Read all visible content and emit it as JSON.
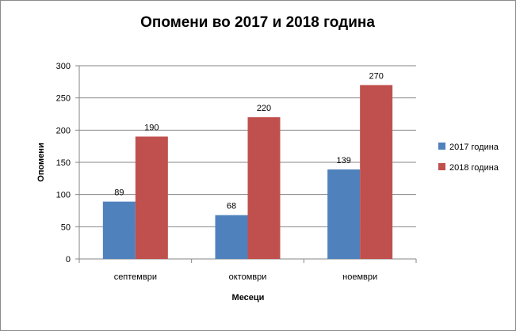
{
  "chart_data": {
    "type": "bar",
    "title": "Опомени во 2017 и 2018 година",
    "xlabel": "Месеци",
    "ylabel": "Опомени",
    "categories": [
      "септември",
      "октомври",
      "ноември"
    ],
    "series": [
      {
        "name": "2017 година",
        "values": [
          89,
          68,
          139
        ],
        "color": "#4f81bd"
      },
      {
        "name": "2018 година",
        "values": [
          190,
          220,
          270
        ],
        "color": "#c0504d"
      }
    ],
    "ylim": [
      0,
      300
    ],
    "yticks": [
      0,
      50,
      100,
      150,
      200,
      250,
      300
    ],
    "grid": true,
    "legend_position": "right"
  }
}
